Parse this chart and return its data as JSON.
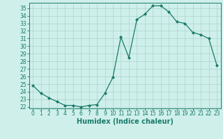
{
  "x": [
    0,
    1,
    2,
    3,
    4,
    5,
    6,
    7,
    8,
    9,
    10,
    11,
    12,
    13,
    14,
    15,
    16,
    17,
    18,
    19,
    20,
    21,
    22,
    23
  ],
  "y": [
    24.8,
    23.8,
    23.2,
    22.7,
    22.2,
    22.2,
    22.0,
    22.2,
    22.3,
    23.8,
    25.9,
    31.2,
    28.5,
    33.5,
    34.2,
    35.3,
    35.3,
    34.5,
    33.2,
    33.0,
    31.8,
    31.5,
    31.0,
    27.5
  ],
  "xlabel": "Humidex (Indice chaleur)",
  "xlim": [
    -0.5,
    23.5
  ],
  "ylim": [
    21.8,
    35.7
  ],
  "yticks": [
    22,
    23,
    24,
    25,
    26,
    27,
    28,
    29,
    30,
    31,
    32,
    33,
    34,
    35
  ],
  "xticks": [
    0,
    1,
    2,
    3,
    4,
    5,
    6,
    7,
    8,
    9,
    10,
    11,
    12,
    13,
    14,
    15,
    16,
    17,
    18,
    19,
    20,
    21,
    22,
    23
  ],
  "line_color": "#1a7a6a",
  "marker": "D",
  "marker_size": 2.0,
  "bg_color": "#cff0ea",
  "grid_color": "#b0d8d0",
  "axis_color": "#1a7a6a",
  "tick_fontsize": 5.5,
  "xlabel_fontsize": 7.0,
  "linewidth": 0.9
}
